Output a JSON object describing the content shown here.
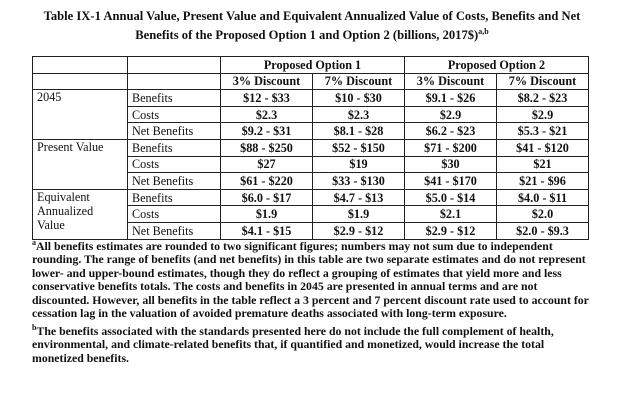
{
  "title_line1": "Table IX-1 Annual Value, Present Value and Equivalent Annualized Value of Costs, Benefits and Net",
  "title_line2": "Benefits of the Proposed Option 1 and Option 2 (billions, 2017$)",
  "title_sup": "a,b",
  "options": [
    "Proposed Option 1",
    "Proposed Option 2"
  ],
  "discounts": [
    "3% Discount",
    "7% Discount",
    "3% Discount",
    "7% Discount"
  ],
  "groups": [
    {
      "label": "2045",
      "rows": [
        {
          "metric": "Benefits",
          "values": [
            "$12 - $33",
            "$10 - $30",
            "$9.1 - $26",
            "$8.2 - $23"
          ]
        },
        {
          "metric": "Costs",
          "values": [
            "$2.3",
            "$2.3",
            "$2.9",
            "$2.9"
          ]
        },
        {
          "metric": "Net Benefits",
          "values": [
            "$9.2 - $31",
            "$8.1 - $28",
            "$6.2 - $23",
            "$5.3 - $21"
          ]
        }
      ]
    },
    {
      "label": "Present Value",
      "rows": [
        {
          "metric": "Benefits",
          "values": [
            "$88 - $250",
            "$52 - $150",
            "$71 - $200",
            "$41 - $120"
          ]
        },
        {
          "metric": "Costs",
          "values": [
            "$27",
            "$19",
            "$30",
            "$21"
          ]
        },
        {
          "metric": "Net Benefits",
          "values": [
            "$61 - $220",
            "$33 - $130",
            "$41 - $170",
            "$21 - $96"
          ]
        }
      ]
    },
    {
      "label_lines": [
        "Equivalent",
        "Annualized",
        "Value"
      ],
      "rows": [
        {
          "metric": "Benefits",
          "values": [
            "$6.0 - $17",
            "$4.7 - $13",
            "$5.0 - $14",
            "$4.0 - $11"
          ]
        },
        {
          "metric": "Costs",
          "values": [
            "$1.9",
            "$1.9",
            "$2.1",
            "$2.0"
          ]
        },
        {
          "metric": "Net Benefits",
          "values": [
            "$4.1 - $15",
            "$2.9 - $12",
            "$2.9 - $12",
            "$2.0 - $9.3"
          ]
        }
      ]
    }
  ],
  "footnote_a_mark": "a",
  "footnote_a": "All benefits estimates are rounded to two significant figures; numbers may not sum due to independent rounding. The range of benefits (and net benefits) in this table are two separate estimates and do not represent lower- and upper-bound estimates, though they do reflect a grouping of estimates that yield more and less conservative benefits totals. The costs and benefits in 2045 are presented in annual terms and are not discounted. However, all benefits in the table reflect a 3 percent and 7 percent discount rate used to account for cessation lag in the valuation of avoided premature deaths associated with long-term exposure.",
  "footnote_b_mark": "b",
  "footnote_b": "The benefits associated with the standards presented here do not include the full complement of health, environmental, and climate-related benefits that, if quantified and monetized, would increase the total monetized benefits."
}
